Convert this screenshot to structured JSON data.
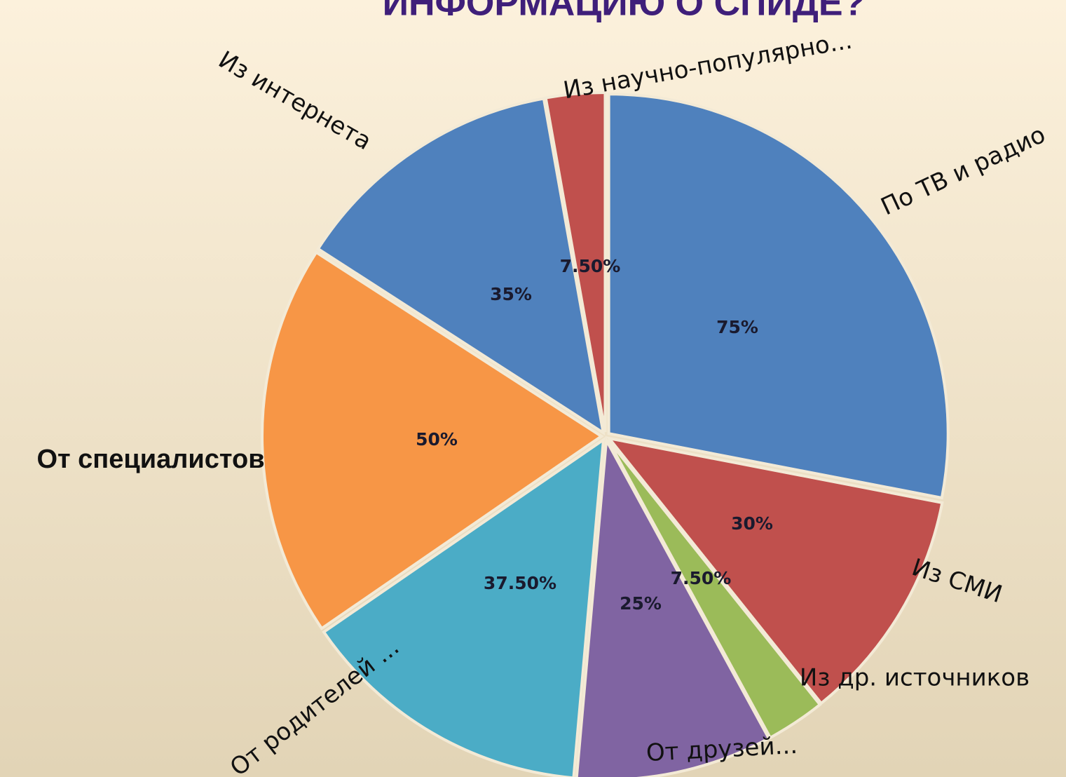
{
  "chart_data": {
    "type": "pie",
    "title": "ИНФОРМАЦИЮ О СПИДЕ?",
    "categories": [
      "По ТВ и радио",
      "Из СМИ",
      "Из др. источников",
      "От друзей...",
      "От родителей ...",
      "От специалистов",
      "Из интернета",
      "Из научно-популярно..."
    ],
    "values": [
      75,
      30,
      7.5,
      25,
      37.5,
      50,
      35,
      7.5
    ],
    "value_labels": [
      "75%",
      "30%",
      "7.50%",
      "25%",
      "37.50%",
      "50%",
      "35%",
      "7.50%"
    ],
    "colors": [
      "#4f81bd",
      "#c0504d",
      "#9bbb59",
      "#8064a2",
      "#4bacc6",
      "#f79646",
      "#4f81bd",
      "#c0504d"
    ]
  }
}
